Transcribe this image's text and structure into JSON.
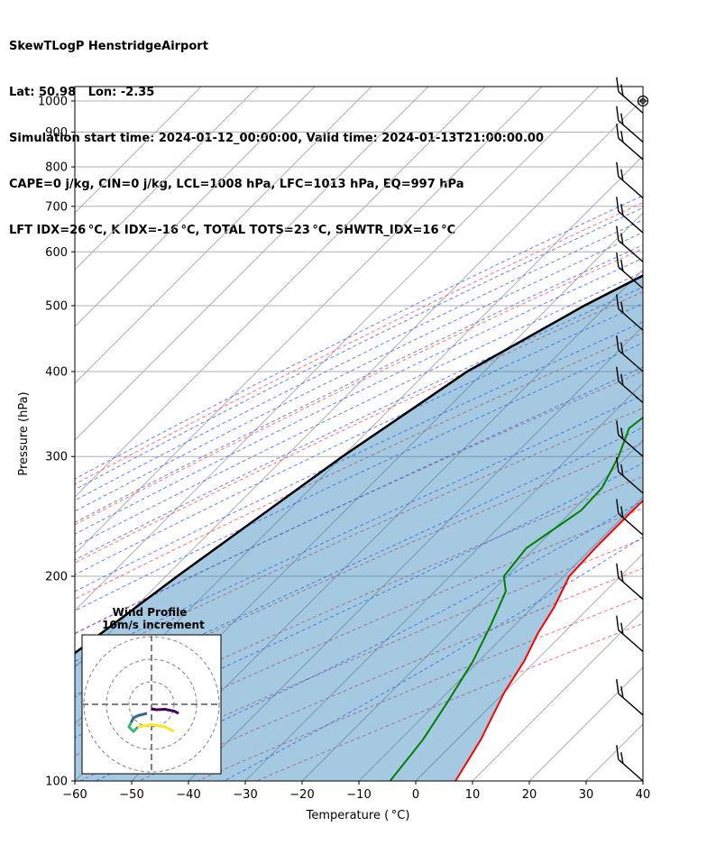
{
  "header": {
    "line1": "SkewTLogP HenstridgeAirport",
    "line2": "Lat: 50.98   Lon: -2.35",
    "line3": "Simulation start time: 2024-01-12_00:00:00, Valid time: 2024-01-13T21:00:00.00",
    "line4": "CAPE=0 j/kg, CIN=0 j/kg, LCL=1008 hPa, LFC=1013 hPa, EQ=997 hPa",
    "line5": "LFT IDX=26 °C, K IDX=-16 °C, TOTAL TOTS=23 °C, SHWTR_IDX=16 °C"
  },
  "chart_data": {
    "type": "line",
    "subtype": "skew-t log-p",
    "xlabel": "Temperature ( °C)",
    "ylabel": "Pressure (hPa)",
    "xlim": [
      -60,
      40
    ],
    "ylim": [
      1050,
      100
    ],
    "x_ticks": [
      "−60",
      "−50",
      "−40",
      "−30",
      "−20",
      "−10",
      "0",
      "10",
      "20",
      "30",
      "40"
    ],
    "y_ticks": [
      "100",
      "200",
      "300",
      "400",
      "500",
      "600",
      "700",
      "800",
      "900",
      "1000"
    ],
    "y_scale": "log",
    "grid": true,
    "series": [
      {
        "kind": "temperature",
        "color": "#ff0000",
        "points": [
          [
            7,
            100
          ],
          [
            4.2,
            115
          ],
          [
            0,
            135
          ],
          [
            -2,
            150
          ],
          [
            -4.5,
            165
          ],
          [
            -6.2,
            180
          ],
          [
            -9,
            200
          ],
          [
            -9.4,
            220
          ],
          [
            -9.4,
            250
          ],
          [
            -9.2,
            270
          ],
          [
            -8.3,
            300
          ],
          [
            -6.4,
            340
          ],
          [
            -5,
            380
          ],
          [
            -4.5,
            400
          ],
          [
            -4,
            430
          ],
          [
            -2.7,
            500
          ],
          [
            -1.5,
            560
          ],
          [
            -0.7,
            600
          ],
          [
            -0.4,
            650
          ],
          [
            -0.9,
            700
          ],
          [
            -1.4,
            750
          ],
          [
            -1.6,
            800
          ],
          [
            -1.3,
            850
          ],
          [
            -0.8,
            900
          ],
          [
            -0.5,
            940
          ],
          [
            -0.3,
            960
          ],
          [
            -1,
            985
          ],
          [
            -2,
            1000
          ]
        ]
      },
      {
        "kind": "dewpoint",
        "color": "#008000",
        "points": [
          [
            -4.5,
            100
          ],
          [
            -6,
            115
          ],
          [
            -8.2,
            130
          ],
          [
            -11,
            150
          ],
          [
            -14.3,
            170
          ],
          [
            -17.5,
            190
          ],
          [
            -20.5,
            200
          ],
          [
            -21.5,
            220
          ],
          [
            -18.5,
            250
          ],
          [
            -18.8,
            270
          ],
          [
            -21.4,
            300
          ],
          [
            -24.5,
            330
          ],
          [
            -23.2,
            360
          ],
          [
            -24.3,
            380
          ],
          [
            -30.5,
            420
          ],
          [
            -29.8,
            450
          ],
          [
            -30,
            480
          ],
          [
            -27.5,
            520
          ],
          [
            -24.5,
            560
          ],
          [
            -22,
            600
          ],
          [
            -20.5,
            650
          ],
          [
            -21.5,
            700
          ],
          [
            -22,
            750
          ],
          [
            -22.5,
            800
          ],
          [
            -18.5,
            860
          ],
          [
            -5.5,
            920
          ],
          [
            -2.3,
            960
          ],
          [
            -1.8,
            1000
          ]
        ]
      },
      {
        "kind": "parcel",
        "color": "#000000",
        "points": [
          [
            -92,
            100
          ],
          [
            -83,
            150
          ],
          [
            -78,
            200
          ],
          [
            -70,
            300
          ],
          [
            -63,
            400
          ],
          [
            -54,
            500
          ],
          [
            -45,
            600
          ],
          [
            -36,
            700
          ],
          [
            -25,
            800
          ],
          [
            -14,
            900
          ],
          [
            -4,
            1000
          ]
        ]
      }
    ],
    "wind_barbs": {
      "x_temperature": 40,
      "pressures": [
        100,
        125,
        155,
        185,
        230,
        265,
        300,
        360,
        400,
        460,
        530,
        580,
        640,
        720,
        820,
        870,
        960,
        1000
      ]
    },
    "inset": {
      "title": "Wind Profile",
      "subtitle": "10m/s increment",
      "hodograph": [
        [
          [
            0,
            -1
          ],
          [
            1,
            -1.2
          ],
          [
            3,
            -1.1
          ],
          [
            5,
            -1.5
          ],
          [
            6,
            -2
          ]
        ],
        [
          [
            -1,
            -2
          ],
          [
            -3,
            -2.5
          ],
          [
            -4,
            -3
          ],
          [
            -4.5,
            -4
          ]
        ],
        [
          [
            -4.5,
            -4
          ],
          [
            -5,
            -5
          ],
          [
            -4,
            -6
          ],
          [
            -3,
            -5
          ]
        ],
        [
          [
            -3,
            -5
          ],
          [
            0,
            -4.5
          ],
          [
            3,
            -5
          ],
          [
            5,
            -6
          ]
        ]
      ],
      "hodograph_colors": [
        "#440154",
        "#31688e",
        "#35b779",
        "#fde725"
      ]
    }
  }
}
